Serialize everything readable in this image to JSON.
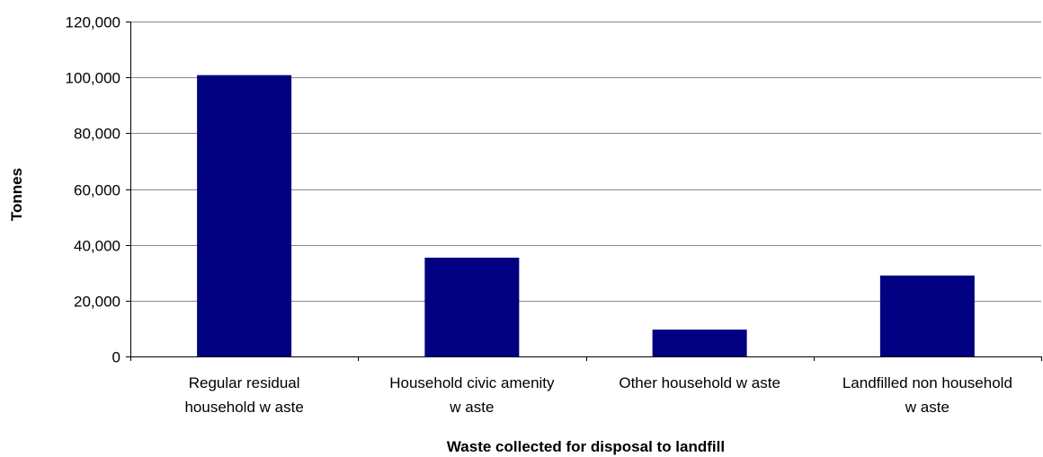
{
  "chart_data": {
    "type": "bar",
    "title": "",
    "xlabel": "Waste collected for disposal to landfill",
    "ylabel": "Tonnes",
    "categories": [
      [
        "Regular residual",
        "household w aste"
      ],
      [
        "Household civic amenity",
        "w aste"
      ],
      [
        "Other household w aste"
      ],
      [
        "Landfilled non household",
        "w aste"
      ]
    ],
    "values": [
      100800,
      35400,
      9600,
      29000
    ],
    "ylim": [
      0,
      120000
    ],
    "yticks": [
      0,
      20000,
      40000,
      60000,
      80000,
      100000,
      120000
    ],
    "ytick_labels": [
      "0",
      "20,000",
      "40,000",
      "60,000",
      "80,000",
      "100,000",
      "120,000"
    ],
    "grid": true,
    "legend": "none",
    "colors": {
      "bar": "#000080",
      "grid": "#888888",
      "axis": "#000000"
    }
  }
}
